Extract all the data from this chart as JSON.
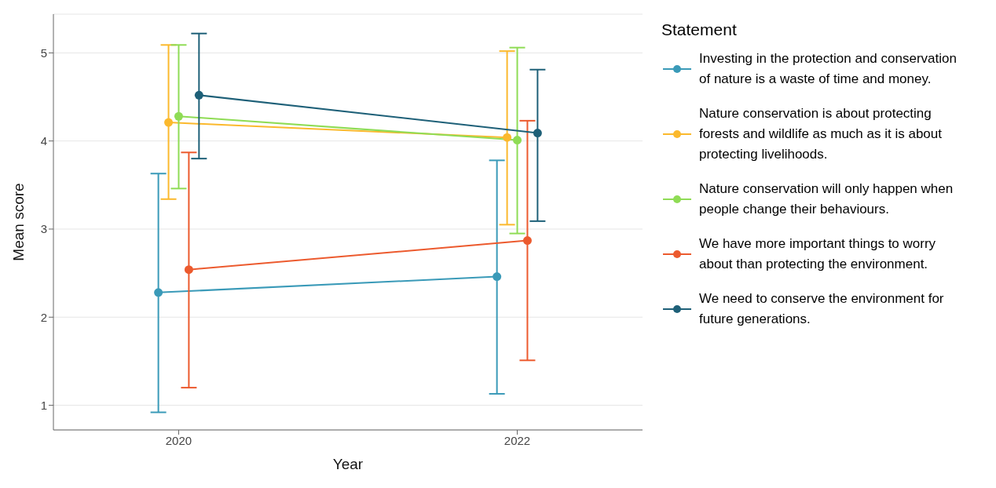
{
  "chart_data": {
    "type": "line",
    "xlabel": "Year",
    "ylabel": "Mean score",
    "legend_title": "Statement",
    "legend": "right",
    "grid": "y",
    "marker": "circle",
    "line_style": "solid",
    "categories": [
      "2020",
      "2022"
    ],
    "ylim": [
      0.72,
      5.44
    ],
    "yticks": [
      1,
      2,
      3,
      4,
      5
    ],
    "series": [
      {
        "name": "Investing in the protection and conservation of nature is a waste of time and money.",
        "color": "#3a9ab8",
        "values": [
          2.28,
          2.46
        ],
        "errors": [
          [
            0.92,
            3.63
          ],
          [
            1.13,
            3.78
          ]
        ]
      },
      {
        "name": "Nature conservation is about protecting forests and wildlife as much as it is about protecting livelihoods.",
        "color": "#fbb92d",
        "values": [
          4.21,
          4.04
        ],
        "errors": [
          [
            3.34,
            5.09
          ],
          [
            3.05,
            5.02
          ]
        ]
      },
      {
        "name": "Nature conservation will only happen when people change their behaviours.",
        "color": "#8fdc55",
        "values": [
          4.28,
          4.01
        ],
        "errors": [
          [
            3.46,
            5.09
          ],
          [
            2.95,
            5.06
          ]
        ]
      },
      {
        "name": "We have more important things to worry about than protecting the environment.",
        "color": "#ec5a2e",
        "values": [
          2.54,
          2.87
        ],
        "errors": [
          [
            1.2,
            3.87
          ],
          [
            1.51,
            4.23
          ]
        ]
      },
      {
        "name": "We need to conserve the environment for future generations.",
        "color": "#1e6078",
        "values": [
          4.52,
          4.09
        ],
        "errors": [
          [
            3.8,
            5.22
          ],
          [
            3.09,
            4.81
          ]
        ]
      }
    ]
  }
}
